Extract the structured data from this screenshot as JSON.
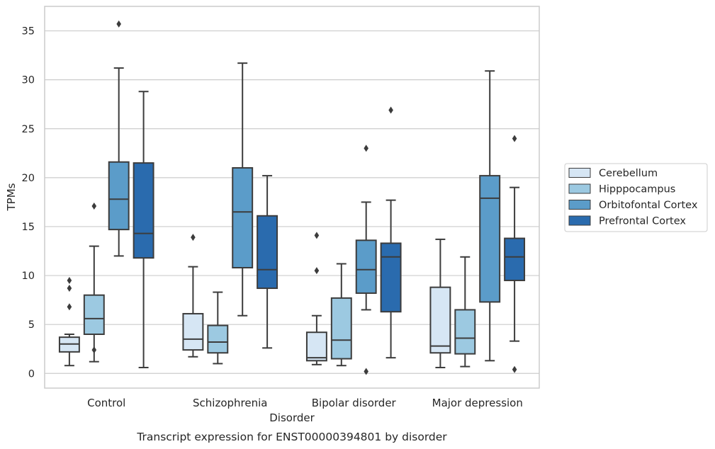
{
  "chart_data": {
    "type": "box",
    "title": "",
    "caption": "Transcript expression for ENST00000394801 by disorder",
    "xlabel": "Disorder",
    "ylabel": "TPMs",
    "ylim": [
      -1.5,
      37.5
    ],
    "yticks": [
      0,
      5,
      10,
      15,
      20,
      25,
      30,
      35
    ],
    "grid": "horizontal",
    "legend_position": "right",
    "categories": [
      "Control",
      "Schizophrenia",
      "Bipolar disorder",
      "Major depression"
    ],
    "series": [
      {
        "name": "Cerebellum",
        "color": "#d6e6f4",
        "boxes": [
          {
            "whisker_low": 0.8,
            "q1": 2.2,
            "median": 3.0,
            "q3": 3.7,
            "whisker_high": 4.0,
            "outliers": [
              6.8,
              8.7,
              9.5
            ]
          },
          {
            "whisker_low": 1.7,
            "q1": 2.4,
            "median": 3.5,
            "q3": 6.1,
            "whisker_high": 10.9,
            "outliers": [
              13.9
            ]
          },
          {
            "whisker_low": 0.9,
            "q1": 1.3,
            "median": 1.6,
            "q3": 4.2,
            "whisker_high": 5.9,
            "outliers": [
              10.5,
              14.1
            ]
          },
          {
            "whisker_low": 0.6,
            "q1": 2.1,
            "median": 2.8,
            "q3": 8.8,
            "whisker_high": 13.7,
            "outliers": []
          }
        ]
      },
      {
        "name": "Hipppocampus",
        "color": "#9cc9e1",
        "boxes": [
          {
            "whisker_low": 1.2,
            "q1": 4.0,
            "median": 5.6,
            "q3": 8.0,
            "whisker_high": 13.0,
            "outliers": [
              2.4,
              17.1
            ]
          },
          {
            "whisker_low": 1.0,
            "q1": 2.1,
            "median": 3.2,
            "q3": 4.9,
            "whisker_high": 8.3,
            "outliers": []
          },
          {
            "whisker_low": 0.8,
            "q1": 1.5,
            "median": 3.4,
            "q3": 7.7,
            "whisker_high": 11.2,
            "outliers": []
          },
          {
            "whisker_low": 0.7,
            "q1": 2.0,
            "median": 3.6,
            "q3": 6.5,
            "whisker_high": 11.9,
            "outliers": []
          }
        ]
      },
      {
        "name": "Orbitofontal Cortex",
        "color": "#5b9cc9",
        "boxes": [
          {
            "whisker_low": 12.0,
            "q1": 14.7,
            "median": 17.8,
            "q3": 21.6,
            "whisker_high": 31.2,
            "outliers": [
              35.7
            ]
          },
          {
            "whisker_low": 5.9,
            "q1": 10.8,
            "median": 16.5,
            "q3": 21.0,
            "whisker_high": 31.7,
            "outliers": []
          },
          {
            "whisker_low": 6.5,
            "q1": 8.2,
            "median": 10.6,
            "q3": 13.6,
            "whisker_high": 17.5,
            "outliers": [
              0.2,
              23.0
            ]
          },
          {
            "whisker_low": 1.3,
            "q1": 7.3,
            "median": 17.9,
            "q3": 20.2,
            "whisker_high": 30.9,
            "outliers": []
          }
        ]
      },
      {
        "name": "Prefrontal Cortex",
        "color": "#2a6bae",
        "boxes": [
          {
            "whisker_low": 0.6,
            "q1": 11.8,
            "median": 14.3,
            "q3": 21.5,
            "whisker_high": 28.8,
            "outliers": []
          },
          {
            "whisker_low": 2.6,
            "q1": 8.7,
            "median": 10.6,
            "q3": 16.1,
            "whisker_high": 20.2,
            "outliers": []
          },
          {
            "whisker_low": 1.6,
            "q1": 6.3,
            "median": 11.9,
            "q3": 13.3,
            "whisker_high": 17.7,
            "outliers": [
              26.9
            ]
          },
          {
            "whisker_low": 3.3,
            "q1": 9.5,
            "median": 11.9,
            "q3": 13.8,
            "whisker_high": 19.0,
            "outliers": [
              0.4,
              24.0
            ]
          }
        ]
      }
    ]
  }
}
